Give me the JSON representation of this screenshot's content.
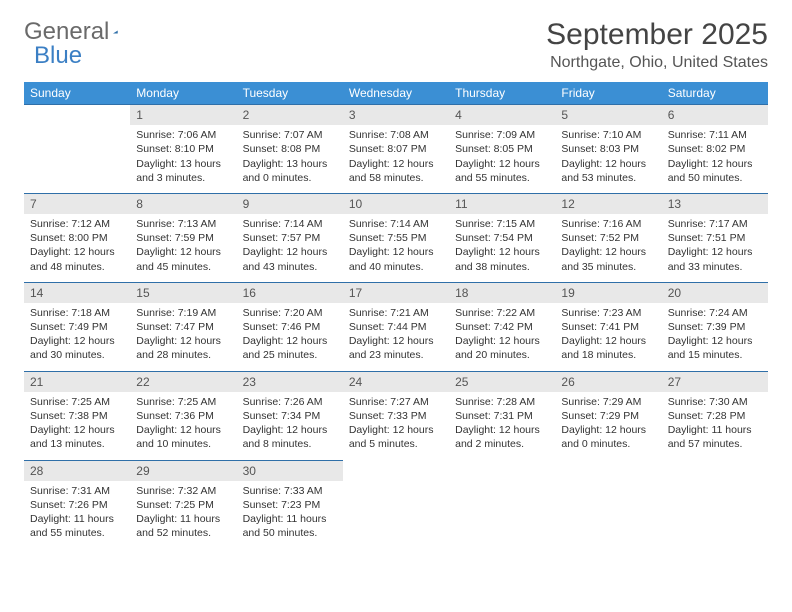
{
  "logo": {
    "word1": "General",
    "word2": "Blue",
    "color1": "#6a6a6a",
    "color2": "#3b7fc4",
    "triangle_color": "#2f6fa8"
  },
  "title": "September 2025",
  "location": "Northgate, Ohio, United States",
  "header_bg": "#3b8fd4",
  "header_text": "#ffffff",
  "daynum_bg": "#e8e8e8",
  "rule_color": "#2f6fa8",
  "weekdays": [
    "Sunday",
    "Monday",
    "Tuesday",
    "Wednesday",
    "Thursday",
    "Friday",
    "Saturday"
  ],
  "weeks": [
    [
      null,
      {
        "n": "1",
        "sr": "Sunrise: 7:06 AM",
        "ss": "Sunset: 8:10 PM",
        "dl": "Daylight: 13 hours and 3 minutes."
      },
      {
        "n": "2",
        "sr": "Sunrise: 7:07 AM",
        "ss": "Sunset: 8:08 PM",
        "dl": "Daylight: 13 hours and 0 minutes."
      },
      {
        "n": "3",
        "sr": "Sunrise: 7:08 AM",
        "ss": "Sunset: 8:07 PM",
        "dl": "Daylight: 12 hours and 58 minutes."
      },
      {
        "n": "4",
        "sr": "Sunrise: 7:09 AM",
        "ss": "Sunset: 8:05 PM",
        "dl": "Daylight: 12 hours and 55 minutes."
      },
      {
        "n": "5",
        "sr": "Sunrise: 7:10 AM",
        "ss": "Sunset: 8:03 PM",
        "dl": "Daylight: 12 hours and 53 minutes."
      },
      {
        "n": "6",
        "sr": "Sunrise: 7:11 AM",
        "ss": "Sunset: 8:02 PM",
        "dl": "Daylight: 12 hours and 50 minutes."
      }
    ],
    [
      {
        "n": "7",
        "sr": "Sunrise: 7:12 AM",
        "ss": "Sunset: 8:00 PM",
        "dl": "Daylight: 12 hours and 48 minutes."
      },
      {
        "n": "8",
        "sr": "Sunrise: 7:13 AM",
        "ss": "Sunset: 7:59 PM",
        "dl": "Daylight: 12 hours and 45 minutes."
      },
      {
        "n": "9",
        "sr": "Sunrise: 7:14 AM",
        "ss": "Sunset: 7:57 PM",
        "dl": "Daylight: 12 hours and 43 minutes."
      },
      {
        "n": "10",
        "sr": "Sunrise: 7:14 AM",
        "ss": "Sunset: 7:55 PM",
        "dl": "Daylight: 12 hours and 40 minutes."
      },
      {
        "n": "11",
        "sr": "Sunrise: 7:15 AM",
        "ss": "Sunset: 7:54 PM",
        "dl": "Daylight: 12 hours and 38 minutes."
      },
      {
        "n": "12",
        "sr": "Sunrise: 7:16 AM",
        "ss": "Sunset: 7:52 PM",
        "dl": "Daylight: 12 hours and 35 minutes."
      },
      {
        "n": "13",
        "sr": "Sunrise: 7:17 AM",
        "ss": "Sunset: 7:51 PM",
        "dl": "Daylight: 12 hours and 33 minutes."
      }
    ],
    [
      {
        "n": "14",
        "sr": "Sunrise: 7:18 AM",
        "ss": "Sunset: 7:49 PM",
        "dl": "Daylight: 12 hours and 30 minutes."
      },
      {
        "n": "15",
        "sr": "Sunrise: 7:19 AM",
        "ss": "Sunset: 7:47 PM",
        "dl": "Daylight: 12 hours and 28 minutes."
      },
      {
        "n": "16",
        "sr": "Sunrise: 7:20 AM",
        "ss": "Sunset: 7:46 PM",
        "dl": "Daylight: 12 hours and 25 minutes."
      },
      {
        "n": "17",
        "sr": "Sunrise: 7:21 AM",
        "ss": "Sunset: 7:44 PM",
        "dl": "Daylight: 12 hours and 23 minutes."
      },
      {
        "n": "18",
        "sr": "Sunrise: 7:22 AM",
        "ss": "Sunset: 7:42 PM",
        "dl": "Daylight: 12 hours and 20 minutes."
      },
      {
        "n": "19",
        "sr": "Sunrise: 7:23 AM",
        "ss": "Sunset: 7:41 PM",
        "dl": "Daylight: 12 hours and 18 minutes."
      },
      {
        "n": "20",
        "sr": "Sunrise: 7:24 AM",
        "ss": "Sunset: 7:39 PM",
        "dl": "Daylight: 12 hours and 15 minutes."
      }
    ],
    [
      {
        "n": "21",
        "sr": "Sunrise: 7:25 AM",
        "ss": "Sunset: 7:38 PM",
        "dl": "Daylight: 12 hours and 13 minutes."
      },
      {
        "n": "22",
        "sr": "Sunrise: 7:25 AM",
        "ss": "Sunset: 7:36 PM",
        "dl": "Daylight: 12 hours and 10 minutes."
      },
      {
        "n": "23",
        "sr": "Sunrise: 7:26 AM",
        "ss": "Sunset: 7:34 PM",
        "dl": "Daylight: 12 hours and 8 minutes."
      },
      {
        "n": "24",
        "sr": "Sunrise: 7:27 AM",
        "ss": "Sunset: 7:33 PM",
        "dl": "Daylight: 12 hours and 5 minutes."
      },
      {
        "n": "25",
        "sr": "Sunrise: 7:28 AM",
        "ss": "Sunset: 7:31 PM",
        "dl": "Daylight: 12 hours and 2 minutes."
      },
      {
        "n": "26",
        "sr": "Sunrise: 7:29 AM",
        "ss": "Sunset: 7:29 PM",
        "dl": "Daylight: 12 hours and 0 minutes."
      },
      {
        "n": "27",
        "sr": "Sunrise: 7:30 AM",
        "ss": "Sunset: 7:28 PM",
        "dl": "Daylight: 11 hours and 57 minutes."
      }
    ],
    [
      {
        "n": "28",
        "sr": "Sunrise: 7:31 AM",
        "ss": "Sunset: 7:26 PM",
        "dl": "Daylight: 11 hours and 55 minutes."
      },
      {
        "n": "29",
        "sr": "Sunrise: 7:32 AM",
        "ss": "Sunset: 7:25 PM",
        "dl": "Daylight: 11 hours and 52 minutes."
      },
      {
        "n": "30",
        "sr": "Sunrise: 7:33 AM",
        "ss": "Sunset: 7:23 PM",
        "dl": "Daylight: 11 hours and 50 minutes."
      },
      null,
      null,
      null,
      null
    ]
  ]
}
